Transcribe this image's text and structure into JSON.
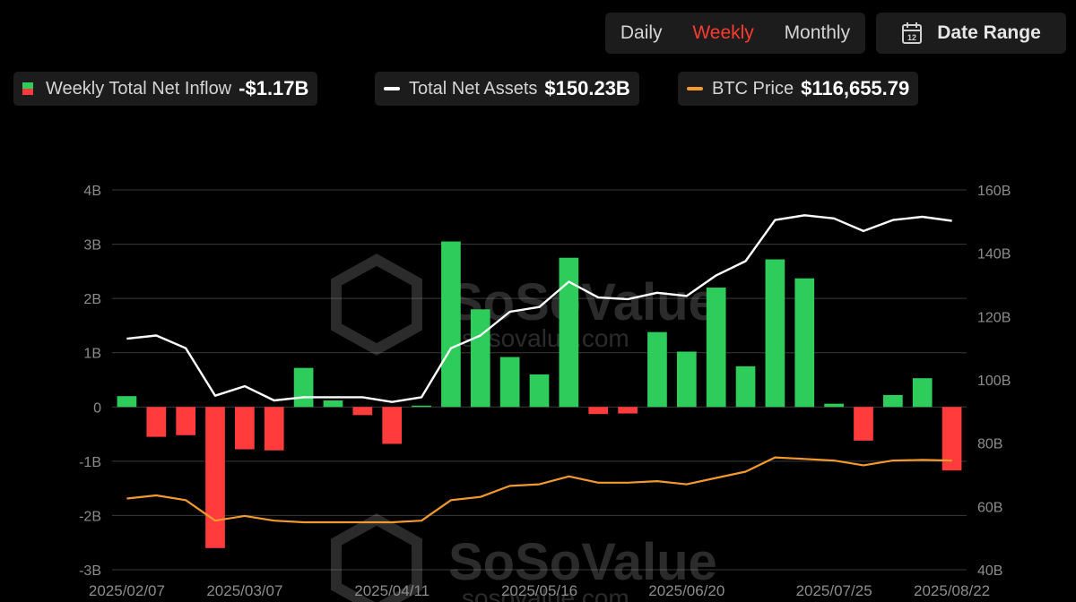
{
  "controls": {
    "periods": [
      "Daily",
      "Weekly",
      "Monthly"
    ],
    "active_period": "Weekly",
    "date_range_label": "Date Range",
    "calendar_icon": "calendar-icon",
    "calendar_number": "12"
  },
  "legend": [
    {
      "label": "Weekly Total Net Inflow",
      "value": "-$1.17B",
      "swatch": "green-red",
      "color_pos": "#2ecc5a",
      "color_neg": "#ff3b3b"
    },
    {
      "label": "Total Net Assets",
      "value": "$150.23B",
      "swatch": "line",
      "color": "#ffffff"
    },
    {
      "label": "BTC Price",
      "value": "$116,655.79",
      "swatch": "line",
      "color": "#f39a2e"
    }
  ],
  "chart_data": {
    "type": "bar",
    "watermark": "SoSoValue",
    "watermark_url": "sosovalue.com",
    "x_tick_labels": [
      "2025/02/07",
      "2025/03/07",
      "2025/04/11",
      "2025/05/16",
      "2025/06/20",
      "2025/07/25",
      "2025/08/22"
    ],
    "x_tick_indices": [
      0,
      4,
      9,
      14,
      19,
      24,
      28
    ],
    "left_axis": {
      "ticks": [
        "4B",
        "3B",
        "2B",
        "1B",
        "0",
        "-1B",
        "-2B",
        "-3B"
      ],
      "ylim": [
        -3,
        4
      ]
    },
    "right_axis": {
      "ticks": [
        "160B",
        "140B",
        "120B",
        "100B",
        "80B",
        "60B",
        "40B"
      ],
      "ylim": [
        40,
        160
      ]
    },
    "colors": {
      "positive": "#2ecc5a",
      "negative": "#ff3b3b",
      "assets": "#ffffff",
      "btc": "#f39a2e",
      "grid": "#3a3a3a",
      "tick": "#8c8c8c"
    },
    "series": [
      {
        "name": "Weekly Total Net Inflow",
        "axis": "left",
        "unit": "B",
        "values": [
          0.2,
          -0.55,
          -0.52,
          -2.6,
          -0.78,
          -0.8,
          0.72,
          0.12,
          -0.15,
          -0.68,
          0.02,
          3.05,
          1.8,
          0.92,
          0.6,
          2.75,
          -0.13,
          -0.12,
          1.38,
          1.02,
          2.2,
          0.75,
          2.72,
          2.37,
          0.06,
          -0.62,
          0.22,
          0.53,
          -1.17
        ]
      },
      {
        "name": "Total Net Assets",
        "axis": "right",
        "unit": "B",
        "values": [
          113,
          114,
          110,
          95,
          98,
          93.5,
          94.5,
          94.5,
          94.5,
          93,
          94.5,
          110,
          114,
          121.5,
          123,
          131,
          126,
          125.5,
          127.5,
          126.5,
          133,
          137.5,
          150.5,
          152,
          151,
          147,
          150.5,
          151.5,
          150.23
        ]
      },
      {
        "name": "BTC Price",
        "axis": "right",
        "unit": "B-scale",
        "values": [
          62.5,
          63.5,
          62,
          55.5,
          57,
          55.5,
          55,
          55,
          55,
          55,
          55.5,
          62,
          63,
          66.5,
          67,
          69.5,
          67.5,
          67.5,
          68,
          67,
          69,
          71,
          75.5,
          75,
          74.5,
          73,
          74.5,
          74.7,
          74.5
        ]
      }
    ]
  }
}
